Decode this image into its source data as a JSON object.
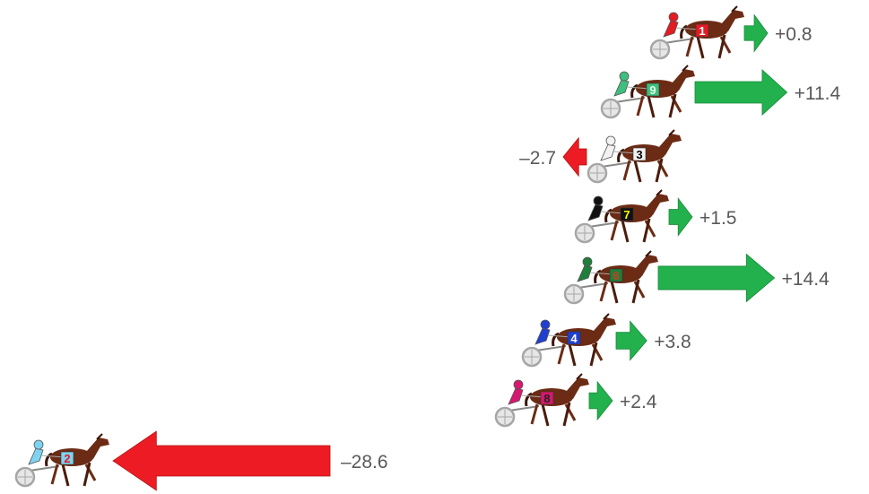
{
  "colors": {
    "positive_arrow": "#22b14c",
    "negative_arrow": "#ed1c24",
    "horse": "#6b2b14",
    "wheel": "#a6a6a6",
    "label": "#595959"
  },
  "horses": [
    {
      "number": "1",
      "change": 0.8,
      "label": "+0.8",
      "silk": "#e31b23",
      "num_color": "#ffffff"
    },
    {
      "number": "9",
      "change": 11.4,
      "label": "+11.4",
      "silk": "#3fbf7f",
      "num_color": "#e0ffe8"
    },
    {
      "number": "3",
      "change": -2.7,
      "label": "–2.7",
      "silk": "#f2f2f2",
      "num_color": "#000000"
    },
    {
      "number": "7",
      "change": 1.5,
      "label": "+1.5",
      "silk": "#111111",
      "num_color": "#ffff00"
    },
    {
      "number": "6",
      "change": 14.4,
      "label": "+14.4",
      "silk": "#1e7f3a",
      "num_color": "#d23b1f"
    },
    {
      "number": "4",
      "change": 3.8,
      "label": "+3.8",
      "silk": "#1f3fd1",
      "num_color": "#ffffff"
    },
    {
      "number": "8",
      "change": 2.4,
      "label": "+2.4",
      "silk": "#d6186f",
      "num_color": "#222222"
    },
    {
      "number": "2",
      "change": -28.6,
      "label": "–28.6",
      "silk": "#7fd3f0",
      "num_color": "#e31b23"
    }
  ]
}
